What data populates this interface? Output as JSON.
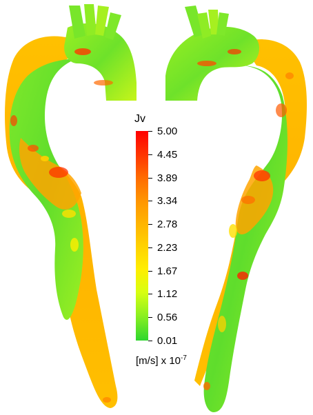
{
  "legend": {
    "title": "Jv",
    "ticks": [
      "5.00",
      "4.45",
      "3.89",
      "3.34",
      "2.78",
      "2.23",
      "1.67",
      "1.12",
      "0.56",
      "0.01"
    ],
    "unit": "[m/s] x 10",
    "unit_exponent": "-7"
  },
  "colors": {
    "max": "#ff0000",
    "high": "#ff8a00",
    "mid": "#ffb000",
    "low_mid": "#ffe400",
    "low": "#66e52a",
    "min": "#2ed62e"
  }
}
